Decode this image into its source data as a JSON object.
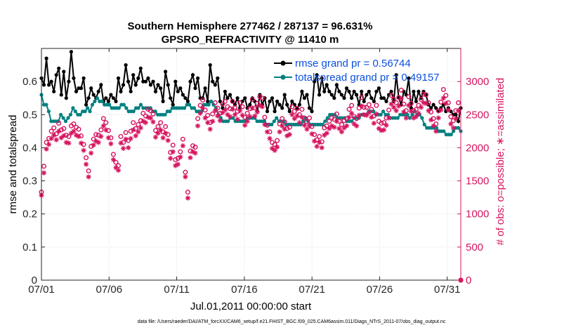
{
  "title_line1": "Southern Hemisphere 277462 / 287137 = 96.631%",
  "title_line2": "GPSRO_REFRACTIVITY @ 11410 m",
  "xlabel": "Jul.01,2011 00:00:00 start",
  "ylabel_left": "rmse and totalspread",
  "ylabel_right": "# of obs: o=possible; ∗=assimilated",
  "footer": "data file: /Users/raeder/DAI/ATM_forcXX/CAM6_setup/f.e21.FHIST_BGC.f09_025.CAM6assim.011/Diags_NTrS_2011-07/obs_diag_output.nc",
  "colors": {
    "rmse": "#000000",
    "spread": "#008080",
    "obs": "#d6145f",
    "legend_text": "#0b4fe0"
  },
  "chart_data": {
    "type": "line",
    "x_tick_labels": [
      "07/01",
      "07/06",
      "07/11",
      "07/16",
      "07/21",
      "07/26",
      "07/31"
    ],
    "x_tick_days": [
      1,
      6,
      11,
      16,
      21,
      26,
      31
    ],
    "xlim_days": [
      1,
      32
    ],
    "ylim_left": [
      0,
      0.7
    ],
    "yticks_left": [
      0,
      0.1,
      0.2,
      0.3,
      0.4,
      0.5,
      0.6
    ],
    "ylim_right": [
      0,
      3500
    ],
    "yticks_right": [
      0,
      500,
      1000,
      1500,
      2000,
      2500,
      3000
    ],
    "grid": true,
    "legend_position": "top-right",
    "series": [
      {
        "name": "rmse grand pr = 0.56744",
        "axis": "left",
        "marker": "dot",
        "values": [
          0.61,
          0.59,
          0.67,
          0.59,
          0.6,
          0.57,
          0.62,
          0.64,
          0.56,
          0.63,
          0.55,
          0.6,
          0.69,
          0.61,
          0.57,
          0.58,
          0.58,
          0.61,
          0.53,
          0.55,
          0.58,
          0.56,
          0.55,
          0.57,
          0.59,
          0.54,
          0.55,
          0.54,
          0.56,
          0.55,
          0.54,
          0.61,
          0.57,
          0.59,
          0.65,
          0.6,
          0.57,
          0.62,
          0.59,
          0.61,
          0.64,
          0.6,
          0.6,
          0.61,
          0.59,
          0.6,
          0.57,
          0.59,
          0.58,
          0.54,
          0.63,
          0.59,
          0.55,
          0.53,
          0.6,
          0.57,
          0.58,
          0.56,
          0.55,
          0.54,
          0.6,
          0.62,
          0.58,
          0.61,
          0.55,
          0.55,
          0.58,
          0.54,
          0.65,
          0.6,
          0.59,
          0.61,
          0.54,
          0.52,
          0.57,
          0.55,
          0.56,
          0.54,
          0.53,
          0.55,
          0.52,
          0.54,
          0.55,
          0.52,
          0.53,
          0.55,
          0.54,
          0.51,
          0.56,
          0.53,
          0.55,
          0.51,
          0.54,
          0.55,
          0.51,
          0.54,
          0.53,
          0.52,
          0.56,
          0.53,
          0.51,
          0.54,
          0.53,
          0.52,
          0.53,
          0.57,
          0.55,
          0.56,
          0.52,
          0.51,
          0.6,
          0.62,
          0.56,
          0.61,
          0.57,
          0.59,
          0.57,
          0.56,
          0.55,
          0.59,
          0.57,
          0.56,
          0.55,
          0.58,
          0.57,
          0.55,
          0.57,
          0.56,
          0.53,
          0.57,
          0.54,
          0.56,
          0.57,
          0.55,
          0.54,
          0.57,
          0.58,
          0.55,
          0.55,
          0.54,
          0.56,
          0.57,
          0.54,
          0.62,
          0.55,
          0.53,
          0.57,
          0.56,
          0.61,
          0.52,
          0.57,
          0.54,
          0.57,
          0.55,
          0.57,
          0.56,
          0.53,
          0.52,
          0.53,
          0.52,
          0.51,
          0.52,
          0.53,
          0.51,
          0.52,
          0.51,
          0.5,
          0.5,
          0.48,
          0.52
        ]
      },
      {
        "name": "totalspread grand pr = 0.49157",
        "axis": "left",
        "marker": "dot",
        "values": [
          0.56,
          0.53,
          0.53,
          0.51,
          0.48,
          0.48,
          0.48,
          0.48,
          0.5,
          0.49,
          0.48,
          0.49,
          0.5,
          0.52,
          0.51,
          0.5,
          0.5,
          0.51,
          0.51,
          0.52,
          0.51,
          0.53,
          0.54,
          0.55,
          0.54,
          0.54,
          0.53,
          0.53,
          0.53,
          0.52,
          0.52,
          0.52,
          0.52,
          0.53,
          0.53,
          0.52,
          0.51,
          0.51,
          0.51,
          0.52,
          0.52,
          0.53,
          0.52,
          0.52,
          0.52,
          0.52,
          0.51,
          0.51,
          0.5,
          0.5,
          0.5,
          0.5,
          0.51,
          0.51,
          0.52,
          0.52,
          0.52,
          0.52,
          0.52,
          0.52,
          0.53,
          0.53,
          0.52,
          0.52,
          0.51,
          0.51,
          0.51,
          0.53,
          0.53,
          0.53,
          0.54,
          0.53,
          0.52,
          0.5,
          0.49,
          0.48,
          0.48,
          0.48,
          0.49,
          0.49,
          0.48,
          0.48,
          0.48,
          0.48,
          0.48,
          0.49,
          0.49,
          0.49,
          0.49,
          0.48,
          0.48,
          0.48,
          0.48,
          0.47,
          0.47,
          0.47,
          0.48,
          0.49,
          0.48,
          0.48,
          0.48,
          0.47,
          0.47,
          0.47,
          0.47,
          0.47,
          0.47,
          0.47,
          0.48,
          0.49,
          0.48,
          0.47,
          0.47,
          0.47,
          0.47,
          0.47,
          0.47,
          0.48,
          0.49,
          0.5,
          0.5,
          0.5,
          0.49,
          0.49,
          0.49,
          0.49,
          0.48,
          0.48,
          0.48,
          0.49,
          0.49,
          0.49,
          0.5,
          0.5,
          0.5,
          0.51,
          0.51,
          0.51,
          0.5,
          0.5,
          0.5,
          0.51,
          0.5,
          0.5,
          0.49,
          0.49,
          0.49,
          0.49,
          0.5,
          0.5,
          0.5,
          0.5,
          0.49,
          0.5,
          0.51,
          0.5,
          0.5,
          0.49,
          0.47,
          0.46,
          0.46,
          0.46,
          0.46,
          0.46,
          0.45,
          0.45,
          0.45,
          0.44,
          0.44,
          0.44,
          0.45,
          0.46,
          0.46,
          0.45
        ]
      },
      {
        "name": "possible",
        "axis": "right",
        "marker": "circle",
        "values": [
          1330,
          1720,
          2080,
          2140,
          2250,
          2300,
          2210,
          2370,
          2270,
          2290,
          2190,
          2170,
          2330,
          2360,
          2310,
          2280,
          2180,
          2050,
          1850,
          1650,
          2020,
          2130,
          2200,
          2190,
          2270,
          2440,
          2380,
          2260,
          2150,
          1900,
          1780,
          1730,
          2170,
          2080,
          2230,
          2110,
          2250,
          2380,
          2290,
          2350,
          2410,
          2520,
          2480,
          2580,
          2560,
          2510,
          2260,
          2320,
          2380,
          2240,
          2320,
          2200,
          1930,
          2040,
          1820,
          1840,
          1940,
          2130,
          1630,
          1330,
          1950,
          2030,
          2010,
          2440,
          2640,
          2720,
          2570,
          2490,
          2380,
          2510,
          2680,
          2600,
          2520,
          2660,
          2700,
          2620,
          2590,
          2700,
          2610,
          2550,
          2680,
          2620,
          2460,
          2520,
          2590,
          2730,
          2600,
          2670,
          2770,
          2750,
          2460,
          2340,
          2240,
          2080,
          2050,
          2110,
          2360,
          2440,
          2390,
          2290,
          2310,
          2620,
          2550,
          2590,
          2500,
          2580,
          2450,
          2390,
          2450,
          2320,
          2200,
          2120,
          2170,
          2090,
          2300,
          2330,
          2400,
          2450,
          2430,
          2510,
          2400,
          2350,
          2410,
          2440,
          2580,
          2640,
          2470,
          2440,
          2600,
          2760,
          2610,
          2610,
          2650,
          2580,
          2480,
          2640,
          2400,
          2370,
          2380,
          2450,
          2570,
          2790,
          2730,
          2680,
          2760,
          2870,
          2660,
          2560,
          2770,
          2670,
          2560,
          2580,
          2640,
          2730,
          2810,
          2800,
          2680,
          2540,
          2440,
          2360,
          2560,
          2690,
          2880,
          2790,
          2680,
          2470,
          2410,
          2560,
          2680,
          0
        ]
      },
      {
        "name": "assimilated",
        "axis": "right",
        "marker": "star",
        "values": [
          1280,
          1620,
          1980,
          2050,
          2140,
          2190,
          2120,
          2250,
          2150,
          2180,
          2080,
          2070,
          2220,
          2250,
          2190,
          2170,
          2070,
          1960,
          1750,
          1560,
          1920,
          2040,
          2100,
          2080,
          2170,
          2330,
          2270,
          2150,
          2060,
          1820,
          1700,
          1660,
          2070,
          1990,
          2130,
          2000,
          2140,
          2270,
          2180,
          2240,
          2300,
          2400,
          2380,
          2460,
          2450,
          2390,
          2160,
          2220,
          2270,
          2150,
          2220,
          2110,
          1840,
          1940,
          1730,
          1750,
          1860,
          2030,
          1560,
          1240,
          1850,
          1940,
          1920,
          2330,
          2520,
          2600,
          2450,
          2380,
          2280,
          2400,
          2560,
          2480,
          2410,
          2530,
          2570,
          2500,
          2470,
          2580,
          2500,
          2430,
          2560,
          2490,
          2340,
          2400,
          2470,
          2600,
          2480,
          2540,
          2640,
          2620,
          2350,
          2240,
          2140,
          1990,
          1960,
          2010,
          2240,
          2330,
          2280,
          2180,
          2200,
          2500,
          2440,
          2480,
          2380,
          2460,
          2340,
          2280,
          2330,
          2210,
          2100,
          2020,
          2080,
          2000,
          2190,
          2220,
          2290,
          2330,
          2310,
          2400,
          2290,
          2240,
          2300,
          2330,
          2460,
          2520,
          2360,
          2330,
          2490,
          2630,
          2500,
          2490,
          2530,
          2460,
          2370,
          2510,
          2290,
          2260,
          2270,
          2340,
          2450,
          2660,
          2610,
          2560,
          2630,
          2740,
          2540,
          2450,
          2640,
          2550,
          2450,
          2470,
          2520,
          2610,
          2680,
          2670,
          2560,
          2420,
          2330,
          2250,
          2450,
          2570,
          2750,
          2670,
          2570,
          2360,
          2300,
          2440,
          2560,
          0
        ]
      }
    ]
  }
}
